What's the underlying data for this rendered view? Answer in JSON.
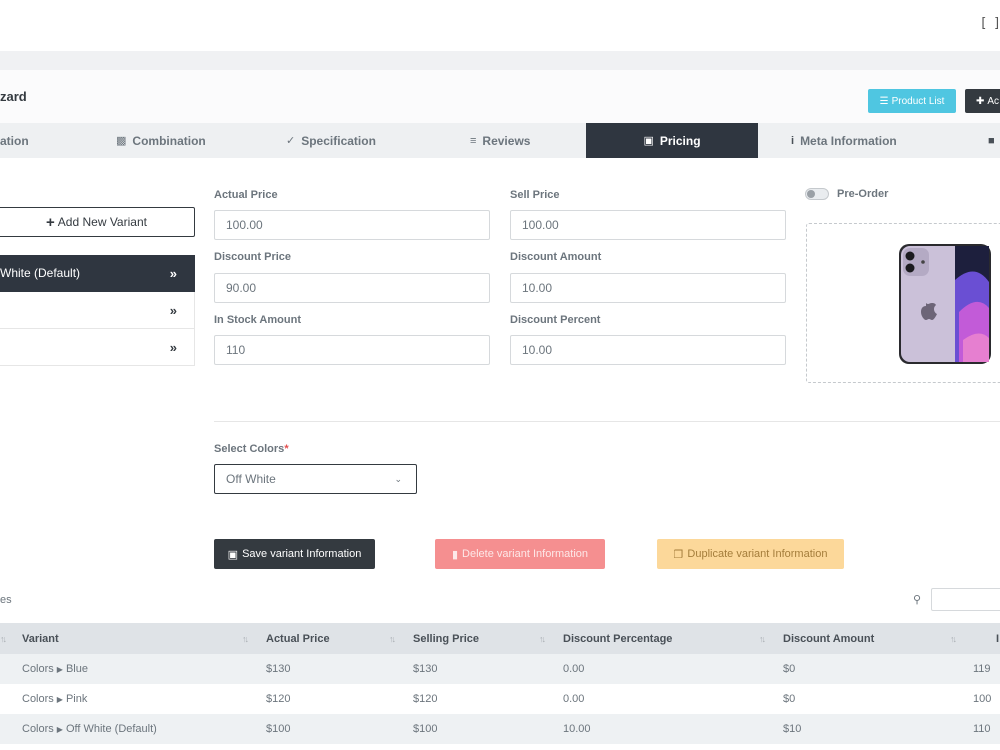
{
  "header": {
    "fullscreen_icon": "fullscreen-icon",
    "title": "zard",
    "product_list_label": "Product List",
    "add_label": "Ac"
  },
  "tabs": [
    {
      "icon": "",
      "label": "ation"
    },
    {
      "icon": "combination-icon",
      "label": "Combination"
    },
    {
      "icon": "check-circle-icon",
      "label": "Specification"
    },
    {
      "icon": "list-icon",
      "label": "Reviews"
    },
    {
      "icon": "money-icon",
      "label": "Pricing",
      "active": true
    },
    {
      "icon": "info-icon",
      "label": "Meta Information"
    },
    {
      "icon": "save-icon",
      "label": ""
    }
  ],
  "variants": {
    "add_label": "Add New Variant",
    "items": [
      {
        "label": "White (Default)",
        "active": true
      },
      {
        "label": ""
      },
      {
        "label": ""
      }
    ]
  },
  "form": {
    "actual_price_label": "Actual Price",
    "actual_price_value": "100.00",
    "sell_price_label": "Sell Price",
    "sell_price_value": "100.00",
    "discount_price_label": "Discount Price",
    "discount_price_value": "90.00",
    "discount_amount_label": "Discount Amount",
    "discount_amount_value": "10.00",
    "in_stock_label": "In Stock Amount",
    "in_stock_value": "110",
    "discount_percent_label": "Discount Percent",
    "discount_percent_value": "10.00",
    "preorder_label": "Pre-Order",
    "select_colors_label": "Select Colors",
    "select_colors_required": "*",
    "select_colors_value": "Off White"
  },
  "actions": {
    "save_label": "Save variant Information",
    "delete_label": "Delete variant Information",
    "duplicate_label": "Duplicate variant Information"
  },
  "table": {
    "entries_text": "es",
    "columns": [
      "Variant",
      "Actual Price",
      "Selling Price",
      "Discount Percentage",
      "Discount Amount",
      "I"
    ],
    "rows": [
      {
        "group": "Colors",
        "variant": "Blue",
        "actual": "$130",
        "selling": "$130",
        "percent": "0.00",
        "amount": "$0",
        "stock": "119"
      },
      {
        "group": "Colors",
        "variant": "Pink",
        "actual": "$120",
        "selling": "$120",
        "percent": "0.00",
        "amount": "$0",
        "stock": "100"
      },
      {
        "group": "Colors",
        "variant": "Off White (Default)",
        "actual": "$100",
        "selling": "$100",
        "percent": "10.00",
        "amount": "$10",
        "stock": "110"
      }
    ]
  },
  "colors": {
    "dark": "#2f3640",
    "info": "#4fc6e1",
    "danger_light": "#f58f90",
    "warning_light": "#fcd89a"
  }
}
